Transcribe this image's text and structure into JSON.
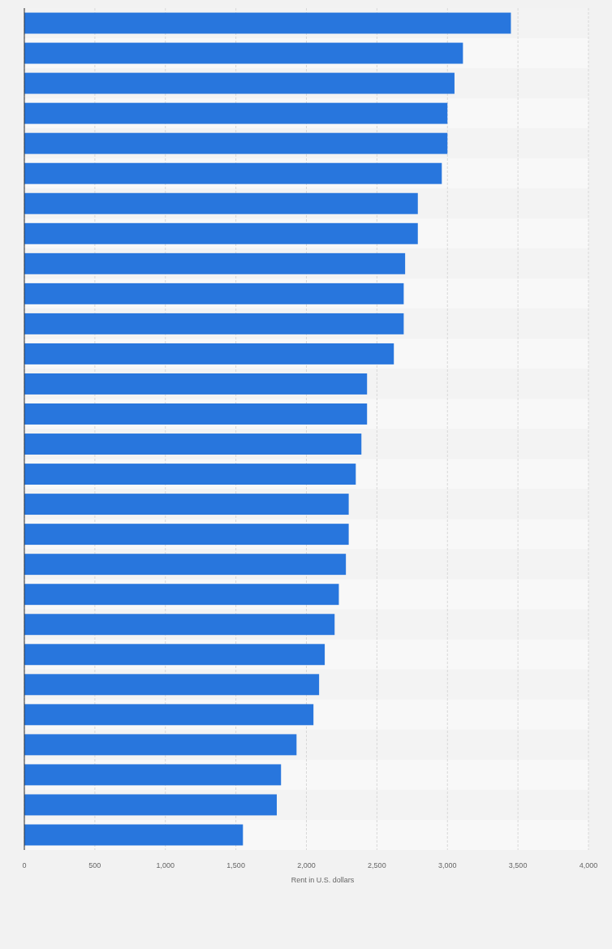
{
  "chart_data": {
    "type": "bar",
    "orientation": "horizontal",
    "xlabel": "Rent in U.S. dollars",
    "categories": [
      null,
      null,
      null,
      null,
      null,
      null,
      null,
      null,
      null,
      null,
      null,
      null,
      null,
      null,
      null,
      null,
      null,
      null,
      null,
      null,
      null,
      null,
      null,
      null,
      null,
      null,
      null,
      null
    ],
    "values": [
      3450,
      3110,
      3050,
      3000,
      3000,
      2960,
      2790,
      2790,
      2700,
      2690,
      2690,
      2620,
      2430,
      2430,
      2390,
      2350,
      2300,
      2300,
      2280,
      2230,
      2200,
      2130,
      2090,
      2050,
      1930,
      1820,
      1790,
      1550
    ],
    "color": "#2876dd",
    "xlim": [
      0,
      4000
    ],
    "xticks": [
      0,
      {
        "value": 500,
        "label": "500"
      },
      {
        "value": 1000,
        "label": "1,000"
      },
      {
        "value": 1500,
        "label": "1,500"
      },
      {
        "value": 2000,
        "label": "2,000"
      },
      {
        "value": 2500,
        "label": "2,500"
      },
      {
        "value": 3000,
        "label": "3,000"
      },
      {
        "value": 3500,
        "label": "3,500"
      },
      {
        "value": 4000,
        "label": "4,000"
      }
    ],
    "grid": "x"
  }
}
